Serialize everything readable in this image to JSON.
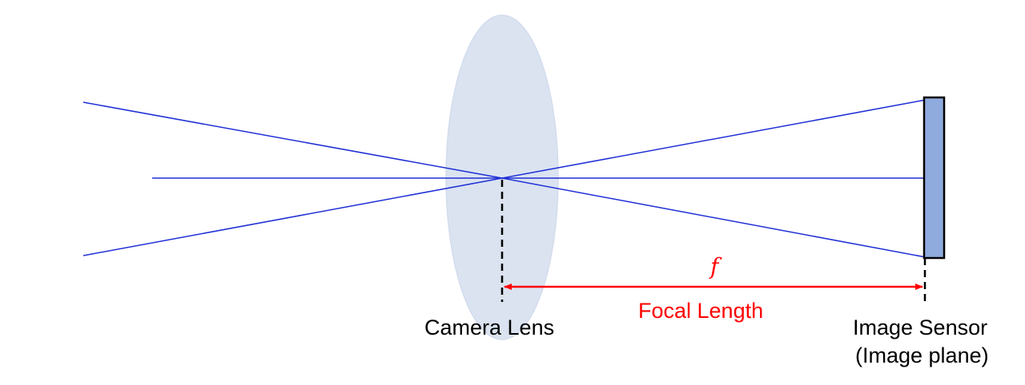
{
  "labels": {
    "lens": "Camera Lens",
    "sensor_line1": "Image Sensor",
    "sensor_line2": "(Image plane)",
    "focal_length": "Focal Length",
    "focal_symbol": "f"
  },
  "colors": {
    "ray": "#1f2fd6",
    "lens_fill": "#dbe3f1",
    "lens_stroke": "#d3dced",
    "sensor_fill": "#8faadc",
    "sensor_stroke": "#000000",
    "marker": "#000000",
    "focal_accent": "#ff0000",
    "text": "#000000"
  }
}
